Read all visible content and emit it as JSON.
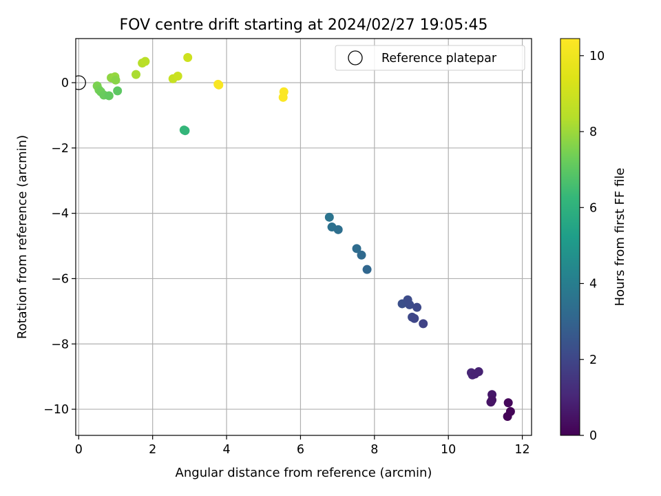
{
  "chart_data": {
    "type": "scatter",
    "title": "FOV centre drift starting at 2024/02/27 19:05:45",
    "xlabel": "Angular distance from reference (arcmin)",
    "ylabel": "Rotation from reference (arcmin)",
    "xlim": [
      -0.08,
      12.25
    ],
    "ylim": [
      -10.8,
      1.35
    ],
    "xticks": [
      0,
      2,
      4,
      6,
      8,
      10,
      12
    ],
    "yticks": [
      0,
      -2,
      -4,
      -6,
      -8,
      -10
    ],
    "grid": true,
    "legend": {
      "position": "top-right",
      "entries": [
        "Reference platepar"
      ]
    },
    "reference_point": {
      "x": 0,
      "y": 0,
      "marker": "open-circle",
      "label": "Reference platepar"
    },
    "colorbar": {
      "label": "Hours from first FF file",
      "colormap": "viridis",
      "min": 0,
      "max": 10.45,
      "ticks": [
        0,
        2,
        4,
        6,
        8,
        10
      ]
    },
    "points": [
      {
        "x": 0.5,
        "y": -0.1,
        "c": 7.5
      },
      {
        "x": 0.55,
        "y": -0.22,
        "c": 7.4
      },
      {
        "x": 0.6,
        "y": -0.28,
        "c": 7.3
      },
      {
        "x": 0.68,
        "y": -0.38,
        "c": 7.2
      },
      {
        "x": 0.82,
        "y": -0.4,
        "c": 7.1
      },
      {
        "x": 0.88,
        "y": 0.15,
        "c": 7.8
      },
      {
        "x": 0.98,
        "y": 0.18,
        "c": 7.9
      },
      {
        "x": 1.0,
        "y": 0.08,
        "c": 7.7
      },
      {
        "x": 1.05,
        "y": -0.25,
        "c": 7.0
      },
      {
        "x": 1.55,
        "y": 0.25,
        "c": 8.2
      },
      {
        "x": 1.72,
        "y": 0.6,
        "c": 8.4
      },
      {
        "x": 1.8,
        "y": 0.65,
        "c": 8.5
      },
      {
        "x": 2.55,
        "y": 0.12,
        "c": 8.8
      },
      {
        "x": 2.68,
        "y": 0.2,
        "c": 8.9
      },
      {
        "x": 2.95,
        "y": 0.77,
        "c": 9.0
      },
      {
        "x": 2.85,
        "y": -1.45,
        "c": 6.3
      },
      {
        "x": 2.88,
        "y": -1.47,
        "c": 6.2
      },
      {
        "x": 3.77,
        "y": -0.05,
        "c": 10.3
      },
      {
        "x": 3.79,
        "y": -0.07,
        "c": 10.3
      },
      {
        "x": 5.55,
        "y": -0.28,
        "c": 10.4
      },
      {
        "x": 5.53,
        "y": -0.45,
        "c": 10.4
      },
      {
        "x": 6.78,
        "y": -4.12,
        "c": 3.6
      },
      {
        "x": 6.85,
        "y": -4.42,
        "c": 3.5
      },
      {
        "x": 7.02,
        "y": -4.5,
        "c": 3.4
      },
      {
        "x": 7.52,
        "y": -5.08,
        "c": 3.3
      },
      {
        "x": 7.65,
        "y": -5.28,
        "c": 3.2
      },
      {
        "x": 7.8,
        "y": -5.72,
        "c": 3.1
      },
      {
        "x": 8.75,
        "y": -6.77,
        "c": 2.3
      },
      {
        "x": 8.9,
        "y": -6.65,
        "c": 2.2
      },
      {
        "x": 8.95,
        "y": -6.8,
        "c": 2.2
      },
      {
        "x": 9.02,
        "y": -7.18,
        "c": 2.1
      },
      {
        "x": 9.08,
        "y": -7.22,
        "c": 2.0
      },
      {
        "x": 9.15,
        "y": -6.88,
        "c": 2.1
      },
      {
        "x": 9.32,
        "y": -7.38,
        "c": 1.9
      },
      {
        "x": 10.62,
        "y": -8.88,
        "c": 1.0
      },
      {
        "x": 10.65,
        "y": -8.95,
        "c": 1.0
      },
      {
        "x": 10.72,
        "y": -8.92,
        "c": 0.9
      },
      {
        "x": 10.82,
        "y": -8.85,
        "c": 0.9
      },
      {
        "x": 11.15,
        "y": -9.78,
        "c": 0.5
      },
      {
        "x": 11.18,
        "y": -9.55,
        "c": 0.6
      },
      {
        "x": 11.18,
        "y": -9.72,
        "c": 0.5
      },
      {
        "x": 11.6,
        "y": -10.22,
        "c": 0.1
      },
      {
        "x": 11.62,
        "y": -9.8,
        "c": 0.2
      },
      {
        "x": 11.68,
        "y": -10.07,
        "c": 0.1
      }
    ]
  }
}
